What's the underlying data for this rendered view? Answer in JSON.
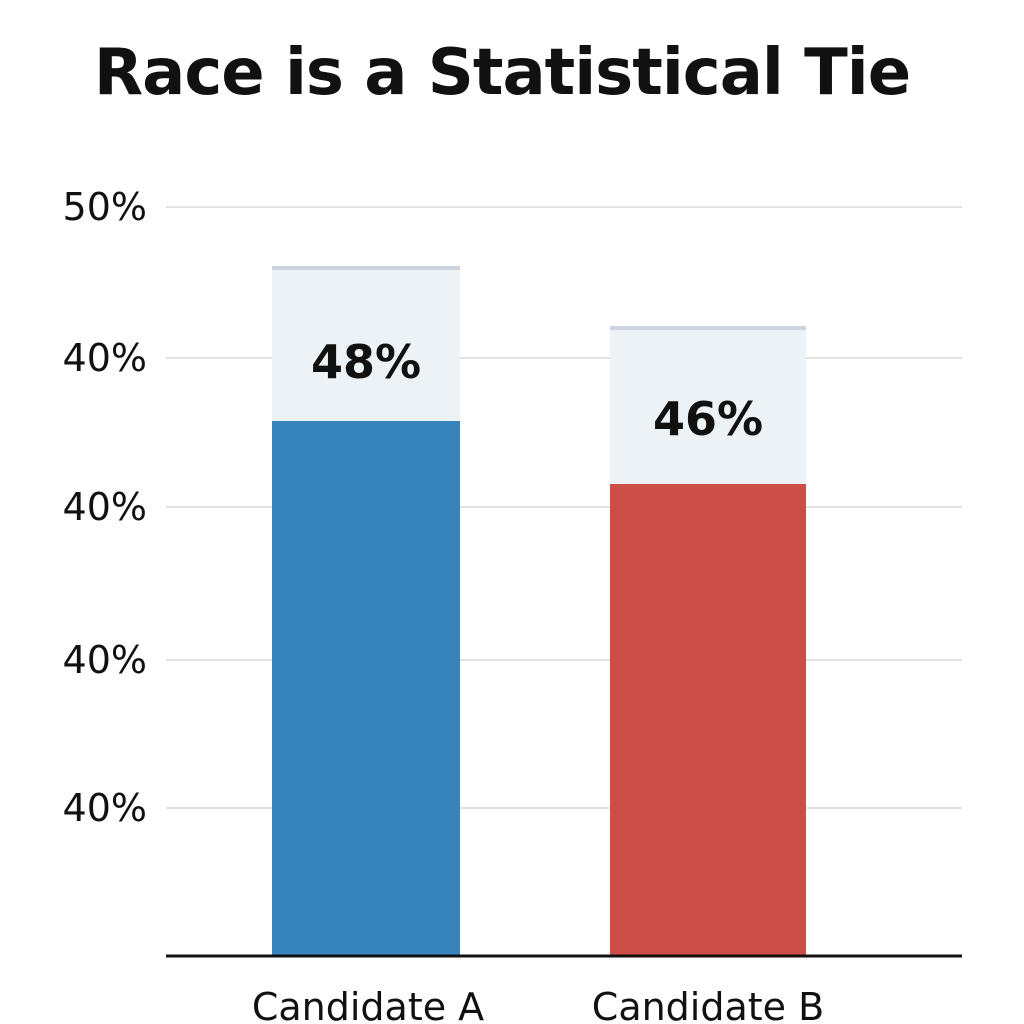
{
  "chart_data": {
    "type": "bar",
    "title": "Race is a Statistical Tie",
    "xlabel": "",
    "ylabel": "",
    "categories": [
      "Candidate A",
      "Candidate B"
    ],
    "values": [
      48,
      46
    ],
    "data_labels": [
      "48%",
      "46%"
    ],
    "y_tick_labels": [
      "40%",
      "40%",
      "40%",
      "40%",
      "50%"
    ],
    "grid": true,
    "legend": "none",
    "colors": {
      "Candidate A": "#3784bd",
      "Candidate B": "#cc4e48",
      "label_band": "#edf2f7",
      "grid": "#e2e2e2",
      "axis": "#111111"
    }
  }
}
